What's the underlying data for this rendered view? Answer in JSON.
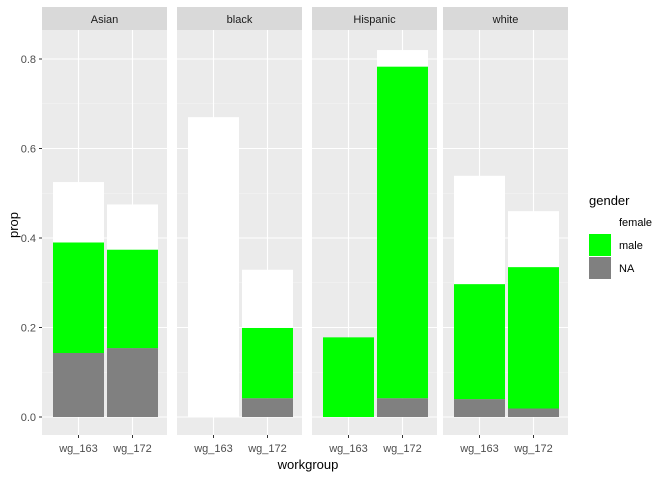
{
  "chart_data": {
    "type": "bar",
    "stacked": true,
    "facet_labels": [
      "Asian",
      "black",
      "Hispanic",
      "white"
    ],
    "categories": [
      "wg_163",
      "wg_172"
    ],
    "xlabel": "workgroup",
    "ylabel": "prop",
    "ylim": [
      0,
      0.85
    ],
    "y_ticks": [
      "0.0",
      "0.2",
      "0.4",
      "0.6",
      "0.8"
    ],
    "y_tick_values": [
      0,
      0.2,
      0.4,
      0.6,
      0.8
    ],
    "grid": true,
    "legend": {
      "title": "gender",
      "position": "right",
      "entries": [
        {
          "name": "female",
          "color": "#ffffff"
        },
        {
          "name": "male",
          "color": "#00ff00"
        },
        {
          "name": "NA",
          "color": "#808080"
        }
      ]
    },
    "facets": [
      {
        "facet": "Asian",
        "series": [
          {
            "name": "NA",
            "values": [
              0.143,
              0.154
            ]
          },
          {
            "name": "male",
            "values": [
              0.247,
              0.22
            ]
          },
          {
            "name": "female",
            "values": [
              0.135,
              0.101
            ]
          }
        ]
      },
      {
        "facet": "black",
        "series": [
          {
            "name": "NA",
            "values": [
              0,
              0.042
            ]
          },
          {
            "name": "male",
            "values": [
              0,
              0.157
            ]
          },
          {
            "name": "female",
            "values": [
              0.67,
              0.13
            ]
          }
        ]
      },
      {
        "facet": "Hispanic",
        "series": [
          {
            "name": "NA",
            "values": [
              0,
              0.042
            ]
          },
          {
            "name": "male",
            "values": [
              0.178,
              0.741
            ]
          },
          {
            "name": "female",
            "values": [
              0,
              0.037
            ]
          }
        ]
      },
      {
        "facet": "white",
        "series": [
          {
            "name": "NA",
            "values": [
              0.04,
              0.019
            ]
          },
          {
            "name": "male",
            "values": [
              0.257,
              0.316
            ]
          },
          {
            "name": "female",
            "values": [
              0.242,
              0.125
            ]
          }
        ]
      }
    ]
  }
}
